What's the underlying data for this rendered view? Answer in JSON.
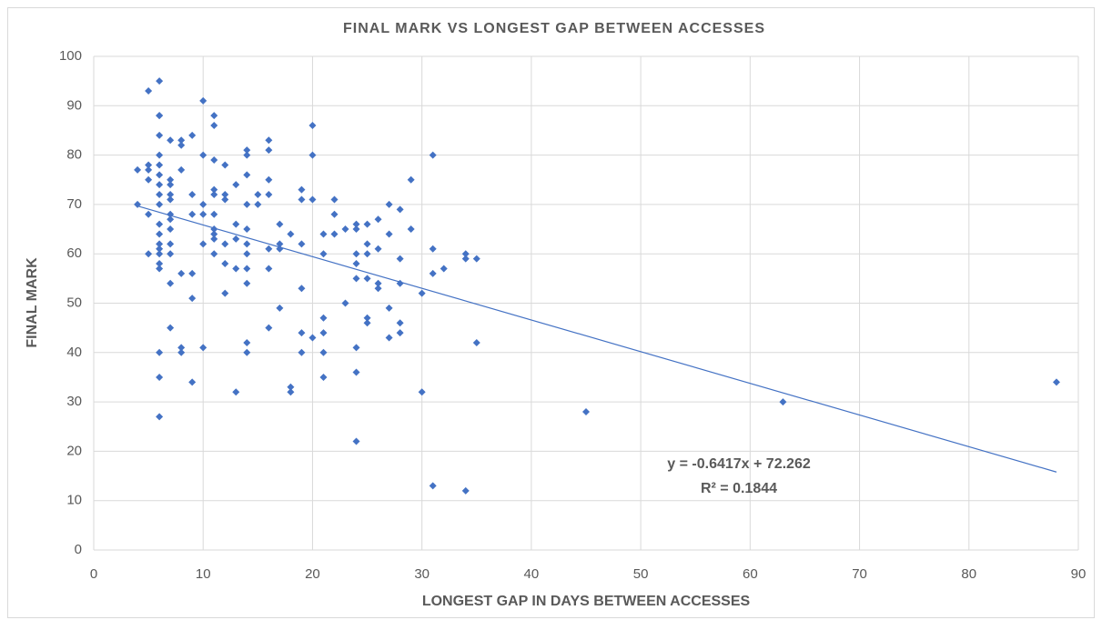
{
  "chart_data": {
    "type": "scatter",
    "title": "FINAL MARK VS LONGEST GAP BETWEEN ACCESSES",
    "xlabel": "LONGEST GAP IN DAYS BETWEEN ACCESSES",
    "ylabel": "FINAL MARK",
    "color": "#4472c4",
    "grid": true,
    "xlim": [
      0,
      90
    ],
    "xticks": [
      0,
      10,
      20,
      30,
      40,
      50,
      60,
      70,
      80,
      90
    ],
    "ylim": [
      0,
      100
    ],
    "yticks": [
      0,
      10,
      20,
      30,
      40,
      50,
      60,
      70,
      80,
      90,
      100
    ],
    "x": [
      4,
      4,
      5,
      5,
      5,
      5,
      5,
      5,
      6,
      6,
      6,
      6,
      6,
      6,
      6,
      6,
      6,
      6,
      6,
      6,
      6,
      6,
      6,
      6,
      6,
      6,
      6,
      6,
      7,
      7,
      7,
      7,
      7,
      7,
      7,
      7,
      7,
      7,
      7,
      7,
      8,
      8,
      8,
      8,
      8,
      8,
      9,
      9,
      9,
      9,
      9,
      9,
      10,
      10,
      10,
      10,
      10,
      10,
      11,
      11,
      11,
      11,
      11,
      11,
      11,
      11,
      11,
      11,
      12,
      12,
      12,
      12,
      12,
      12,
      13,
      13,
      13,
      13,
      13,
      14,
      14,
      14,
      14,
      14,
      14,
      14,
      14,
      14,
      14,
      14,
      15,
      15,
      16,
      16,
      16,
      16,
      16,
      16,
      16,
      17,
      17,
      17,
      17,
      18,
      18,
      18,
      19,
      19,
      19,
      19,
      19,
      19,
      20,
      20,
      20,
      20,
      21,
      21,
      21,
      21,
      21,
      21,
      22,
      22,
      22,
      23,
      23,
      24,
      24,
      24,
      24,
      24,
      24,
      24,
      24,
      25,
      25,
      25,
      25,
      25,
      25,
      26,
      26,
      26,
      26,
      27,
      27,
      27,
      27,
      28,
      28,
      28,
      28,
      28,
      29,
      29,
      30,
      30,
      31,
      31,
      31,
      31,
      32,
      34,
      34,
      34,
      35,
      35,
      45,
      63,
      88
    ],
    "values": [
      77,
      70,
      93,
      78,
      77,
      75,
      68,
      60,
      95,
      88,
      88,
      84,
      80,
      78,
      76,
      74,
      72,
      70,
      66,
      64,
      62,
      61,
      60,
      58,
      57,
      40,
      35,
      27,
      83,
      75,
      74,
      72,
      71,
      68,
      67,
      65,
      62,
      60,
      54,
      45,
      83,
      82,
      77,
      56,
      41,
      40,
      84,
      72,
      68,
      56,
      51,
      34,
      91,
      80,
      70,
      68,
      62,
      41,
      88,
      86,
      79,
      73,
      72,
      68,
      65,
      64,
      63,
      60,
      78,
      72,
      71,
      62,
      58,
      52,
      74,
      66,
      63,
      57,
      32,
      81,
      80,
      76,
      70,
      65,
      62,
      60,
      57,
      54,
      42,
      40,
      72,
      70,
      83,
      81,
      75,
      72,
      61,
      57,
      45,
      66,
      62,
      61,
      49,
      64,
      33,
      32,
      73,
      71,
      62,
      53,
      44,
      40,
      86,
      80,
      71,
      43,
      64,
      60,
      47,
      44,
      40,
      35,
      71,
      68,
      64,
      65,
      50,
      66,
      65,
      60,
      58,
      55,
      41,
      36,
      22,
      66,
      62,
      60,
      55,
      47,
      46,
      67,
      61,
      54,
      53,
      70,
      64,
      49,
      43,
      69,
      59,
      54,
      46,
      44,
      75,
      65,
      52,
      32,
      80,
      61,
      56,
      13,
      57,
      60,
      59,
      12,
      59,
      42,
      28,
      30,
      34
    ],
    "trendline": {
      "slope": -0.6417,
      "intercept": 72.262,
      "color": "#4472c4",
      "equation": "y = -0.6417x + 72.262",
      "r_squared": "R² = 0.1844"
    }
  }
}
